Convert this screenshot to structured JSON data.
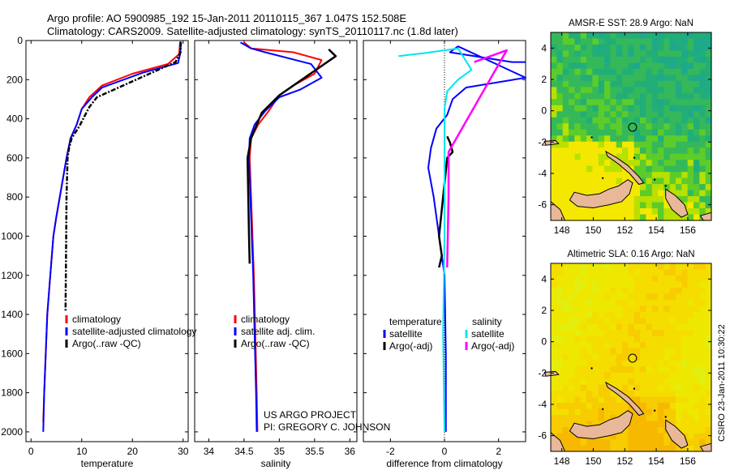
{
  "header": {
    "line1": "Argo profile: AO 5900985_192 15-Jan-2011 20110115_367 1.047S 152.508E",
    "line2": "Climatology: CARS2009. Satellite-adjusted climatology: synTS_20110117.nc (1.8d later)"
  },
  "side_label": "CSIRO 23-Jan-2011 10:30:22",
  "colors": {
    "climatology": "#ff0000",
    "satellite": "#0000ff",
    "argo": "#000000",
    "sat_salinity": "#00e5ee",
    "argo_salinity_adj": "#ff00ff",
    "land": "#e8b898"
  },
  "chart_data": [
    {
      "type": "line",
      "name": "temperature",
      "xlabel": "temperature",
      "ylabel": "",
      "xlim": [
        -1,
        31
      ],
      "ylim": [
        2050,
        0
      ],
      "y_reversed": true,
      "xticks": [
        0,
        10,
        20,
        30
      ],
      "yticks": [
        0,
        200,
        400,
        600,
        800,
        1000,
        1200,
        1400,
        1600,
        1800,
        2000
      ],
      "legend": [
        "climatology",
        "satellite-adjusted climatology",
        "Argo(..raw -QC)"
      ],
      "series": [
        {
          "name": "climatology",
          "color": "#ff0000",
          "x": [
            29.4,
            29.2,
            27.0,
            20.0,
            14.0,
            11.5,
            10.0,
            9.0,
            7.8,
            7.0,
            6.0,
            5.0,
            4.4,
            3.8,
            3.2,
            2.9,
            2.6,
            2.4
          ],
          "y": [
            10,
            70,
            120,
            170,
            230,
            290,
            350,
            430,
            500,
            600,
            750,
            900,
            1000,
            1200,
            1400,
            1600,
            1800,
            1950
          ]
        },
        {
          "name": "satellite-adjusted climatology",
          "color": "#0000ff",
          "x": [
            29.6,
            29.4,
            29.0,
            22.0,
            14.0,
            12.0,
            10.0,
            9.0,
            7.8,
            7.0,
            6.0,
            5.0,
            4.4,
            3.8,
            3.2,
            2.9,
            2.6,
            2.4
          ],
          "y": [
            10,
            70,
            115,
            165,
            240,
            290,
            350,
            430,
            500,
            600,
            750,
            900,
            1000,
            1200,
            1400,
            1600,
            1800,
            2000
          ]
        },
        {
          "name": "Argo(..raw -QC)",
          "color": "#000000",
          "x": [
            29.5,
            29.5,
            28.5,
            13.0,
            11.5,
            9.5,
            8.0,
            7.5,
            7.2,
            7.0,
            6.9,
            6.8
          ],
          "y": [
            5,
            60,
            110,
            290,
            340,
            440,
            500,
            550,
            600,
            800,
            1100,
            1380
          ]
        }
      ]
    },
    {
      "type": "line",
      "name": "salinity",
      "xlabel": "salinity",
      "ylabel": "",
      "xlim": [
        33.8,
        36.1
      ],
      "ylim": [
        2050,
        0
      ],
      "y_reversed": true,
      "xticks": [
        34,
        34.5,
        35,
        35.5,
        36
      ],
      "legend": [
        "climatology",
        "satellite adj. clim.",
        "Argo(..raw -QC)"
      ],
      "annotation": [
        "US ARGO PROJECT",
        "PI: GREGORY C. JOHNSON"
      ],
      "series": [
        {
          "name": "climatology",
          "color": "#ff0000",
          "x": [
            34.5,
            34.6,
            35.2,
            35.6,
            35.5,
            35.2,
            35.0,
            34.85,
            34.7,
            34.6,
            34.58,
            34.6,
            34.62,
            34.64,
            34.66,
            34.68,
            34.69
          ],
          "y": [
            10,
            40,
            60,
            100,
            170,
            230,
            280,
            360,
            430,
            500,
            600,
            800,
            1000,
            1200,
            1500,
            1800,
            2000
          ]
        },
        {
          "name": "satellite adj. clim.",
          "color": "#0000ff",
          "x": [
            34.45,
            34.6,
            34.8,
            35.45,
            35.6,
            35.3,
            35.0,
            34.8,
            34.65,
            34.58,
            34.57,
            34.59,
            34.61,
            34.63,
            34.65,
            34.67,
            34.68
          ],
          "y": [
            10,
            40,
            60,
            120,
            190,
            250,
            290,
            360,
            430,
            500,
            600,
            800,
            1000,
            1200,
            1500,
            1800,
            2000
          ]
        },
        {
          "name": "Argo(..raw -QC)",
          "color": "#000000",
          "x": [
            35.7,
            35.8,
            35.0,
            34.75,
            34.6,
            34.55,
            34.56,
            34.57,
            34.58
          ],
          "y": [
            45,
            80,
            280,
            370,
            500,
            600,
            800,
            1000,
            1140
          ]
        }
      ]
    },
    {
      "type": "line",
      "name": "difference",
      "xlabel": "difference from climatology",
      "ylabel": "",
      "xlim": [
        -3,
        3
      ],
      "ylim": [
        2050,
        0
      ],
      "y_reversed": true,
      "xticks": [
        -2,
        0,
        2
      ],
      "legend": [
        "temperature",
        "satellite",
        "Argo(-adj)",
        "salinity",
        "satellite",
        "Argo(-adj)"
      ],
      "series": [
        {
          "name": "temperature satellite",
          "color": "#0000ff",
          "x": [
            3.0,
            2.5,
            0.2,
            0.5,
            3.0,
            0.8,
            0.3,
            0.1,
            -0.3,
            -0.5,
            -0.6,
            -0.4,
            -0.2,
            0.0,
            0.05,
            0.05
          ],
          "y": [
            110,
            110,
            60,
            30,
            190,
            240,
            300,
            380,
            450,
            550,
            650,
            800,
            1000,
            1200,
            1600,
            2000
          ]
        },
        {
          "name": "temperature Argo(-adj)",
          "color": "#000000",
          "x": [
            0.1,
            0.2,
            0.3,
            0.1,
            -0.2,
            -0.1,
            -0.2
          ],
          "y": [
            490,
            520,
            570,
            600,
            1000,
            1100,
            1160
          ]
        },
        {
          "name": "salinity satellite",
          "color": "#00e5ee",
          "x": [
            -1.7,
            -0.8,
            0.5,
            1.0,
            0.5,
            0.1,
            0.0,
            0.0,
            0.0,
            -0.05,
            0.0
          ],
          "y": [
            80,
            65,
            40,
            150,
            200,
            260,
            350,
            500,
            1000,
            1500,
            2000
          ]
        },
        {
          "name": "salinity Argo(-adj)",
          "color": "#ff00ff",
          "x": [
            1.1,
            2.3,
            0.15,
            0.15,
            0.1
          ],
          "y": [
            110,
            50,
            570,
            800,
            1160
          ]
        }
      ]
    },
    {
      "type": "heatmap",
      "name": "map-sst",
      "title": "AMSR-E SST: 28.9 Argo: NaN",
      "xlim": [
        147.3,
        157.5
      ],
      "ylim": [
        -7,
        5
      ],
      "xticks": [
        148,
        150,
        152,
        154,
        156
      ],
      "yticks": [
        -6,
        -4,
        -2,
        0,
        2,
        4
      ],
      "marker": {
        "lon": 152.5,
        "lat": -1.05
      }
    },
    {
      "type": "heatmap",
      "name": "map-sla",
      "title": "Altimetric SLA: 0.16 Argo: NaN",
      "xlim": [
        147.3,
        157.5
      ],
      "ylim": [
        -7,
        5
      ],
      "xticks": [
        148,
        150,
        152,
        154,
        156
      ],
      "yticks": [
        -6,
        -4,
        -2,
        0,
        2,
        4
      ],
      "marker": {
        "lon": 152.5,
        "lat": -1.05
      }
    }
  ]
}
